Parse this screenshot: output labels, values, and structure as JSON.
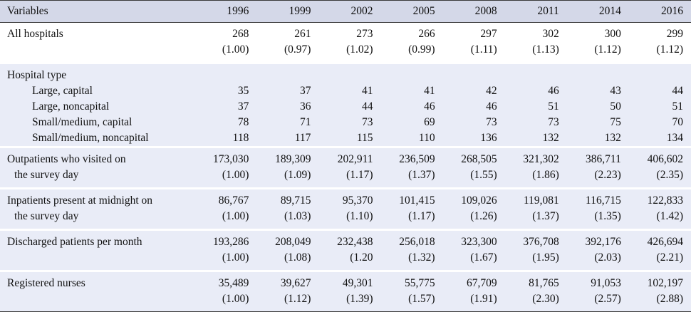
{
  "table": {
    "header": [
      "Variables",
      "1996",
      "1999",
      "2002",
      "2005",
      "2008",
      "2011",
      "2014",
      "2016"
    ],
    "all_hospitals": {
      "label": "All hospitals",
      "values": [
        "268",
        "261",
        "273",
        "266",
        "297",
        "302",
        "300",
        "299"
      ],
      "ratios": [
        "(1.00)",
        "(0.97)",
        "(1.02)",
        "(0.99)",
        "(1.11)",
        "(1.13)",
        "(1.12)",
        "(1.12)"
      ]
    },
    "hospital_type": {
      "label": "Hospital type",
      "rows": [
        {
          "label": "Large, capital",
          "values": [
            "35",
            "37",
            "41",
            "41",
            "42",
            "46",
            "43",
            "44"
          ]
        },
        {
          "label": "Large, noncapital",
          "values": [
            "37",
            "36",
            "44",
            "46",
            "46",
            "51",
            "50",
            "51"
          ]
        },
        {
          "label": "Small/medium, capital",
          "values": [
            "78",
            "71",
            "73",
            "69",
            "73",
            "73",
            "75",
            "70"
          ]
        },
        {
          "label": "Small/medium, noncapital",
          "values": [
            "118",
            "117",
            "115",
            "110",
            "136",
            "132",
            "132",
            "134"
          ]
        }
      ]
    },
    "outpatients": {
      "label_line1": "Outpatients who visited on",
      "label_line2": "the survey day",
      "values": [
        "173,030",
        "189,309",
        "202,911",
        "236,509",
        "268,505",
        "321,302",
        "386,711",
        "406,602"
      ],
      "ratios": [
        "(1.00)",
        "(1.09)",
        "(1.17)",
        "(1.37)",
        "(1.55)",
        "(1.86)",
        "(2.23)",
        "(2.35)"
      ]
    },
    "inpatients": {
      "label_line1": "Inpatients present at midnight on",
      "label_line2": "the survey day",
      "values": [
        "86,767",
        "89,715",
        "95,370",
        "101,415",
        "109,026",
        "119,081",
        "116,715",
        "122,833"
      ],
      "ratios": [
        "(1.00)",
        "(1.03)",
        "(1.10)",
        "(1.17)",
        "(1.26)",
        "(1.37)",
        "(1.35)",
        "(1.42)"
      ]
    },
    "discharged": {
      "label": "Discharged patients per month",
      "values": [
        "193,286",
        "208,049",
        "232,438",
        "256,018",
        "323,300",
        "376,708",
        "392,176",
        "426,694"
      ],
      "ratios": [
        "(1.00)",
        "(1.08)",
        "(1.20",
        "(1.32)",
        "(1.67)",
        "(1.95)",
        "(2.03)",
        "(2.21)"
      ]
    },
    "nurses": {
      "label": "Registered nurses",
      "values": [
        "35,489",
        "39,627",
        "49,301",
        "55,775",
        "67,709",
        "81,765",
        "91,053",
        "102,197"
      ],
      "ratios": [
        "(1.00)",
        "(1.12)",
        "(1.39)",
        "(1.57)",
        "(1.91)",
        "(2.30)",
        "(2.57)",
        "(2.88)"
      ]
    }
  }
}
